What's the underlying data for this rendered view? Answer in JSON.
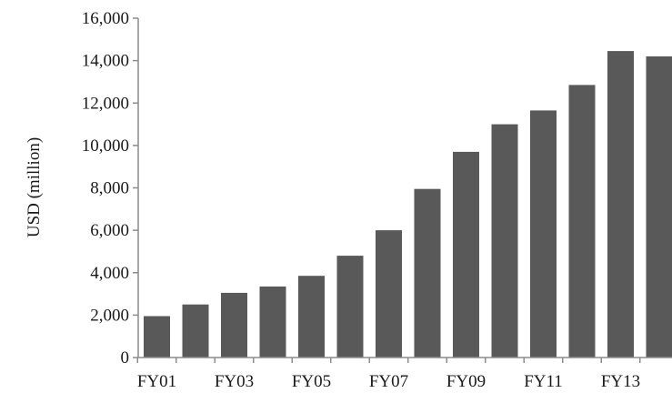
{
  "chart_data": {
    "type": "bar",
    "title": "",
    "xlabel": "",
    "ylabel": "USD (million)",
    "ylim": [
      0,
      16000
    ],
    "yticks": [
      0,
      2000,
      4000,
      6000,
      8000,
      10000,
      12000,
      14000,
      16000
    ],
    "ytick_labels": [
      "0",
      "2,000",
      "4,000",
      "6,000",
      "8,000",
      "10,000",
      "12,000",
      "14,000",
      "16,000"
    ],
    "categories": [
      "FY01",
      "FY02",
      "FY03",
      "FY04",
      "FY05",
      "FY06",
      "FY07",
      "FY08",
      "FY09",
      "FY10",
      "FY11",
      "FY12",
      "FY13",
      "FY14"
    ],
    "shown_category_labels": [
      "FY01",
      "FY03",
      "FY05",
      "FY07",
      "FY09",
      "FY11",
      "FY13"
    ],
    "values": [
      1950,
      2500,
      3050,
      3350,
      3850,
      4800,
      6000,
      7950,
      9700,
      11000,
      11650,
      12850,
      14450,
      14200
    ],
    "bar_color": "#595959",
    "axis_color": "#8c8c8c",
    "grid": false,
    "legend": "none"
  }
}
